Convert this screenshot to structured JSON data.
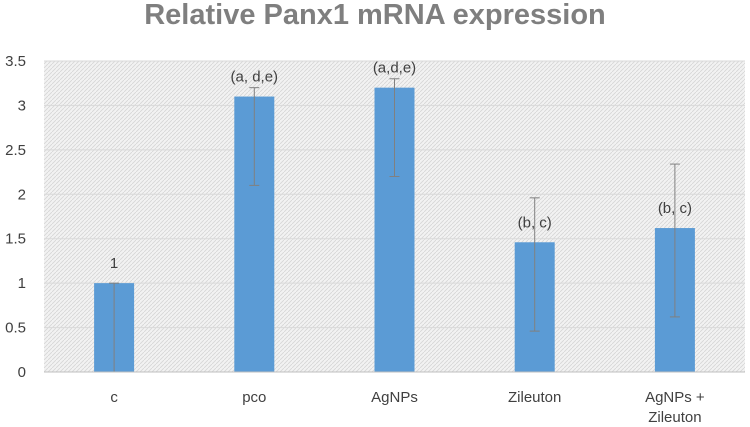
{
  "chart_data": {
    "type": "bar",
    "title": "Relative Panx1 mRNA expression",
    "xlabel": "",
    "ylabel": "",
    "categories": [
      "c",
      "pco",
      "AgNPs",
      "Zileuton",
      "AgNPs + Zileuton"
    ],
    "category_lines": [
      [
        "c"
      ],
      [
        "pco"
      ],
      [
        "AgNPs"
      ],
      [
        "Zileuton"
      ],
      [
        "AgNPs +",
        "Zileuton"
      ]
    ],
    "values": [
      1.0,
      3.1,
      3.2,
      1.46,
      1.62
    ],
    "error_low": [
      0.0,
      2.1,
      2.2,
      0.46,
      0.62
    ],
    "error_high": [
      1.0,
      3.2,
      3.3,
      1.96,
      2.34
    ],
    "annotations": [
      "1",
      "(a, d,e)",
      "(a,d,e)",
      "(b, c)",
      "(b, c)"
    ],
    "yticks": [
      "0",
      "0.5",
      "1",
      "1.5",
      "2",
      "2.5",
      "3",
      "3.5"
    ],
    "ylim": [
      0,
      3.5
    ],
    "grid": true,
    "bar_color": "#5b9bd5",
    "error_bar_color": "#808080"
  }
}
